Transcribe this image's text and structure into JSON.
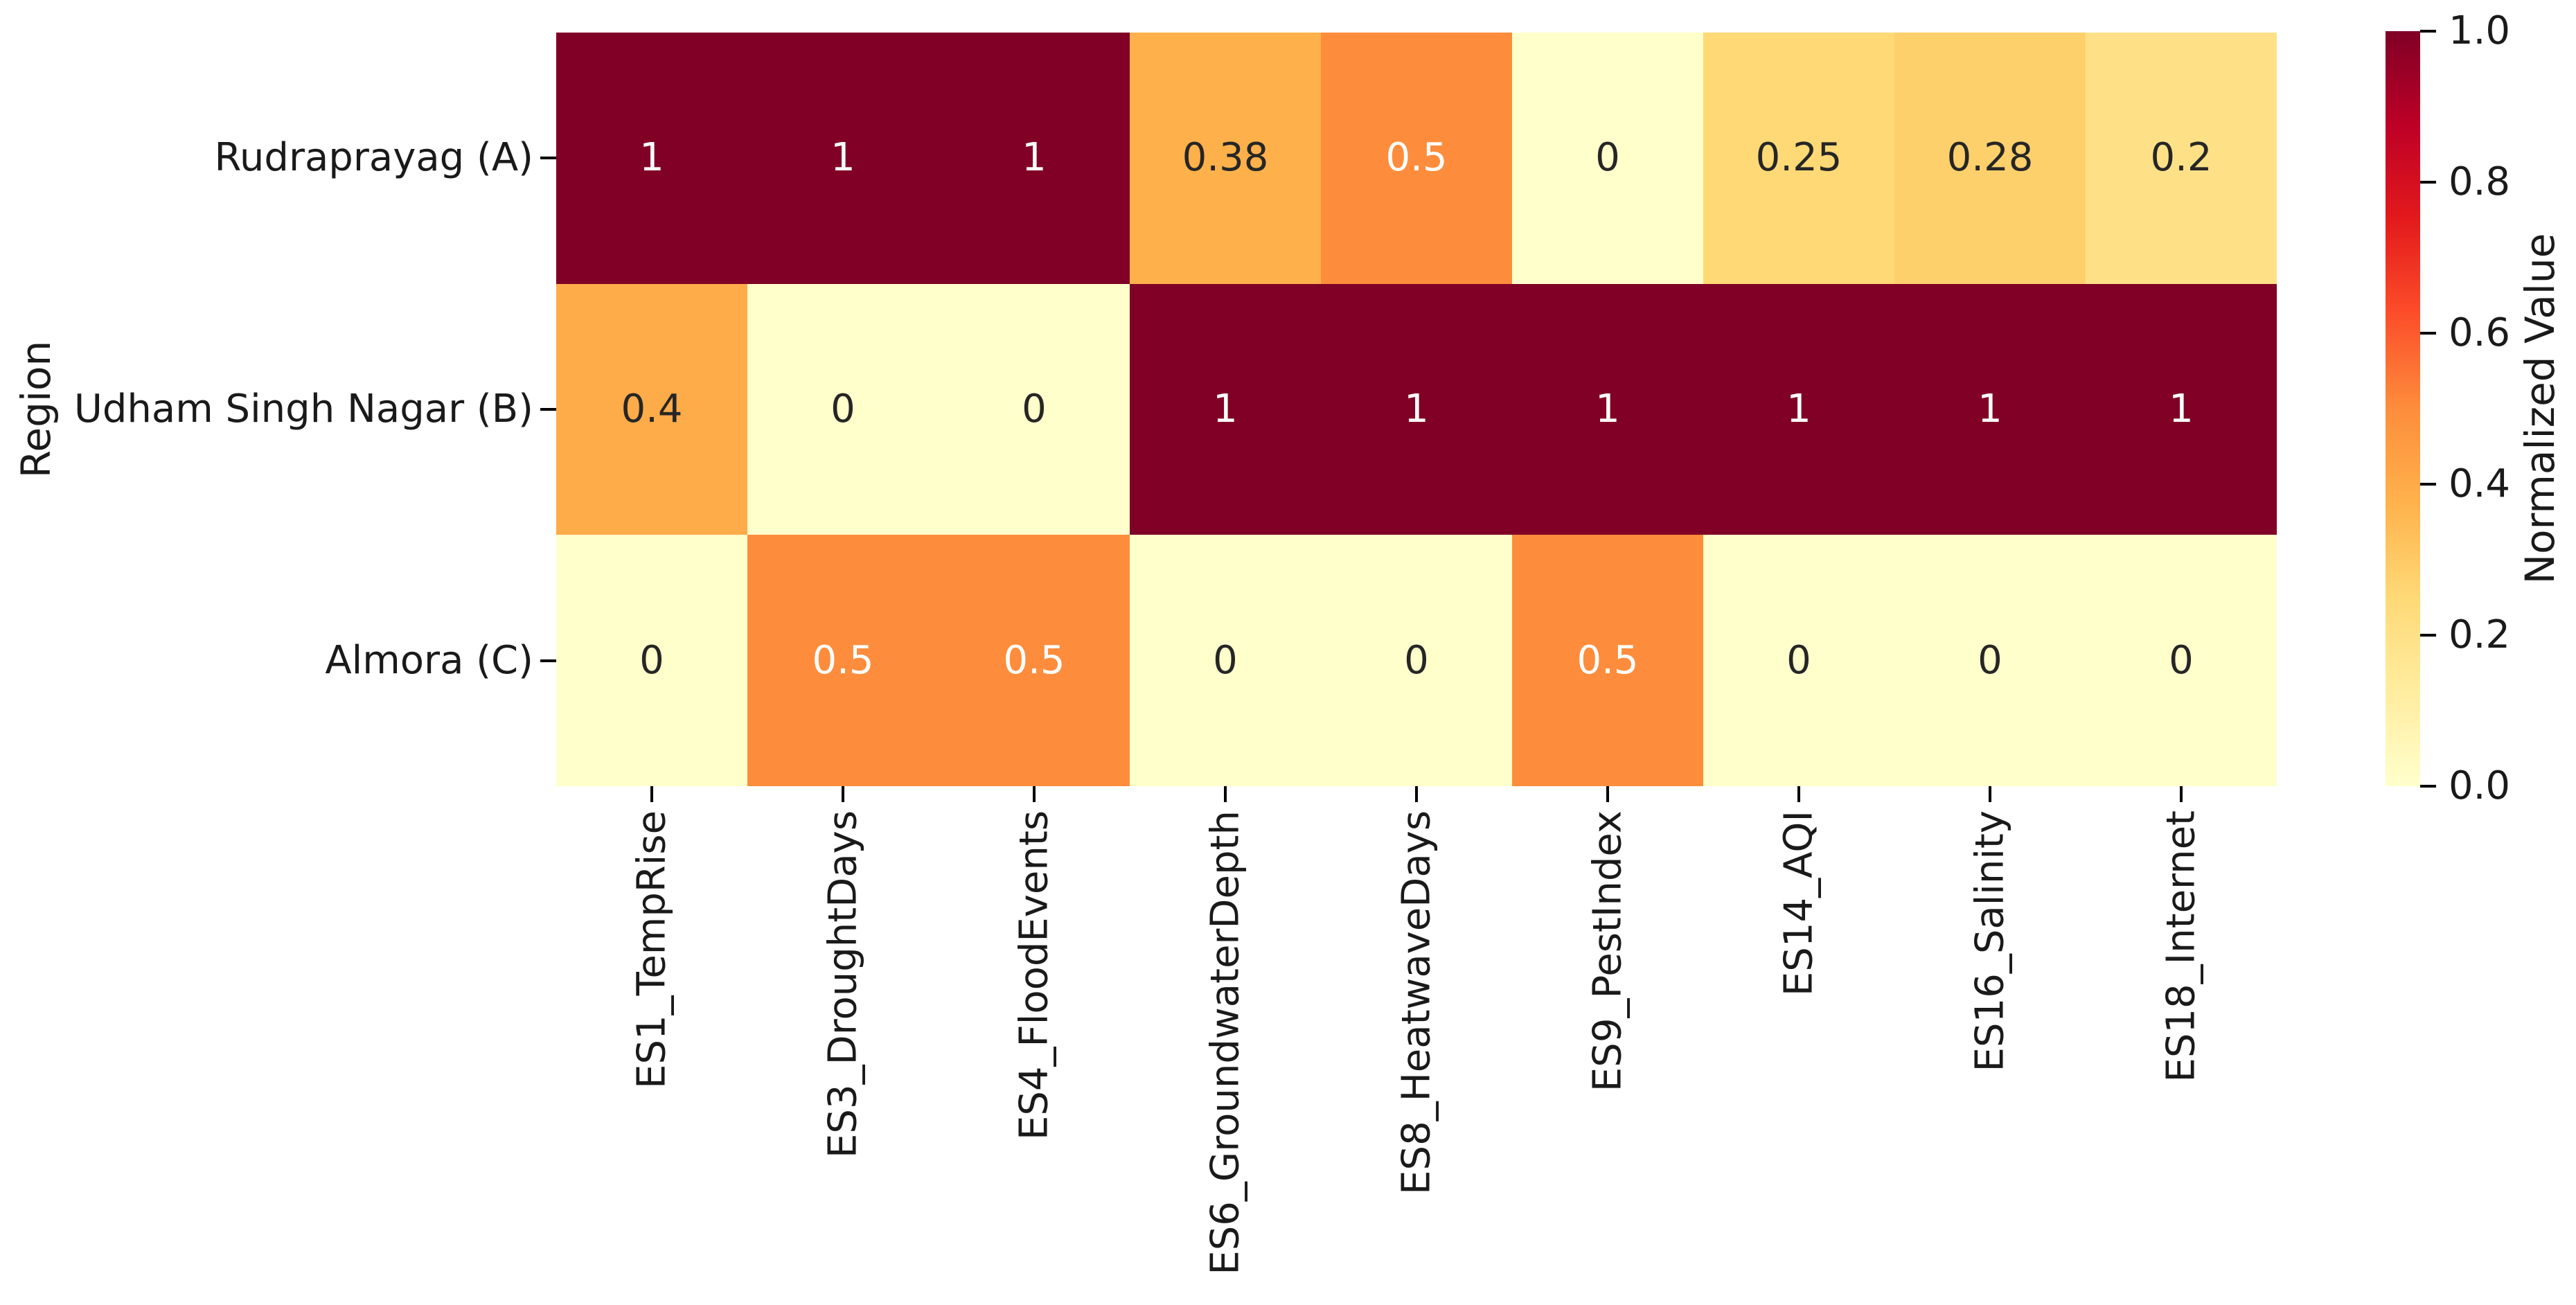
{
  "chart_data": {
    "type": "heatmap",
    "title": "",
    "xlabel": "",
    "ylabel": "Region",
    "colorbar_label": "Normalized Value",
    "colormap": "YlOrRd",
    "vmin": 0.0,
    "vmax": 1.0,
    "rows": [
      "Rudraprayag (A)",
      "Udham Singh Nagar (B)",
      "Almora (C)"
    ],
    "columns": [
      "ES1_TempRise",
      "ES3_DroughtDays",
      "ES4_FloodEvents",
      "ES6_GroundwaterDepth",
      "ES8_HeatwaveDays",
      "ES9_PestIndex",
      "ES14_AQI",
      "ES16_Salinity",
      "ES18_Internet"
    ],
    "values": [
      [
        1,
        1,
        1,
        0.38,
        0.5,
        0,
        0.25,
        0.28,
        0.2
      ],
      [
        0.4,
        0,
        0,
        1,
        1,
        1,
        1,
        1,
        1
      ],
      [
        0,
        0.5,
        0.5,
        0,
        0,
        0.5,
        0,
        0,
        0
      ]
    ],
    "colorbar_ticks": [
      {
        "value": 1.0,
        "label": "1.0"
      },
      {
        "value": 0.8,
        "label": "0.8"
      },
      {
        "value": 0.6,
        "label": "0.6"
      },
      {
        "value": 0.4,
        "label": "0.4"
      },
      {
        "value": 0.2,
        "label": "0.2"
      },
      {
        "value": 0.0,
        "label": "0.0"
      }
    ],
    "colormap_stops": {
      "positions": [
        0,
        0.125,
        0.25,
        0.375,
        0.5,
        0.625,
        0.75,
        0.875,
        1
      ],
      "colors": [
        "#ffffcc",
        "#ffeda0",
        "#fed976",
        "#feb24c",
        "#fd8d3c",
        "#fc4e2a",
        "#e31a1c",
        "#bd0026",
        "#800026"
      ]
    },
    "annotation_colors": {
      "dark": "#262626",
      "light": "#ffffff"
    },
    "grid": false,
    "legend_position": "right-colorbar",
    "background": "#ffffff"
  }
}
